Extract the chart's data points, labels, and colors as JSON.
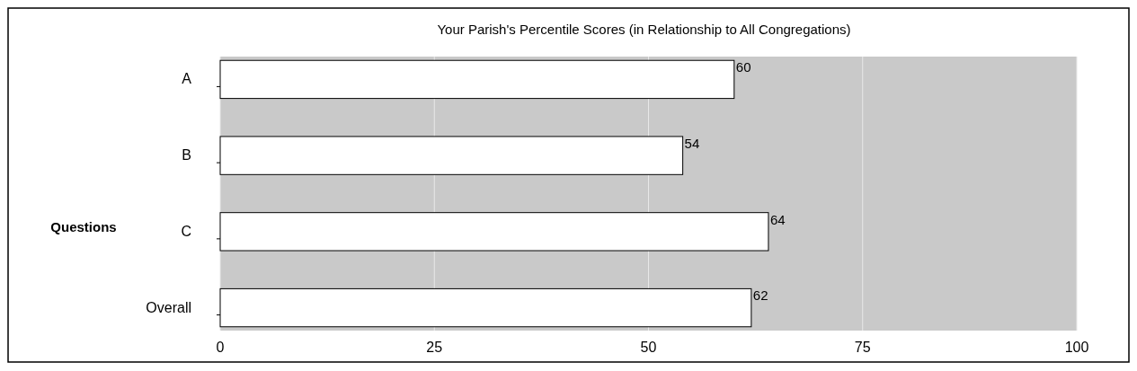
{
  "chart_data": {
    "type": "bar",
    "orientation": "horizontal",
    "title": "Your Parish's Percentile Scores (in Relationship to All Congregations)",
    "ylabel": "Questions",
    "categories": [
      "A",
      "B",
      "C",
      "Overall"
    ],
    "values": [
      60,
      54,
      64,
      62
    ],
    "color": "#ffffff",
    "xlim": [
      0,
      100
    ],
    "xticks": [
      0,
      25,
      50,
      75,
      100
    ],
    "grid": "x",
    "data_labels": true
  }
}
